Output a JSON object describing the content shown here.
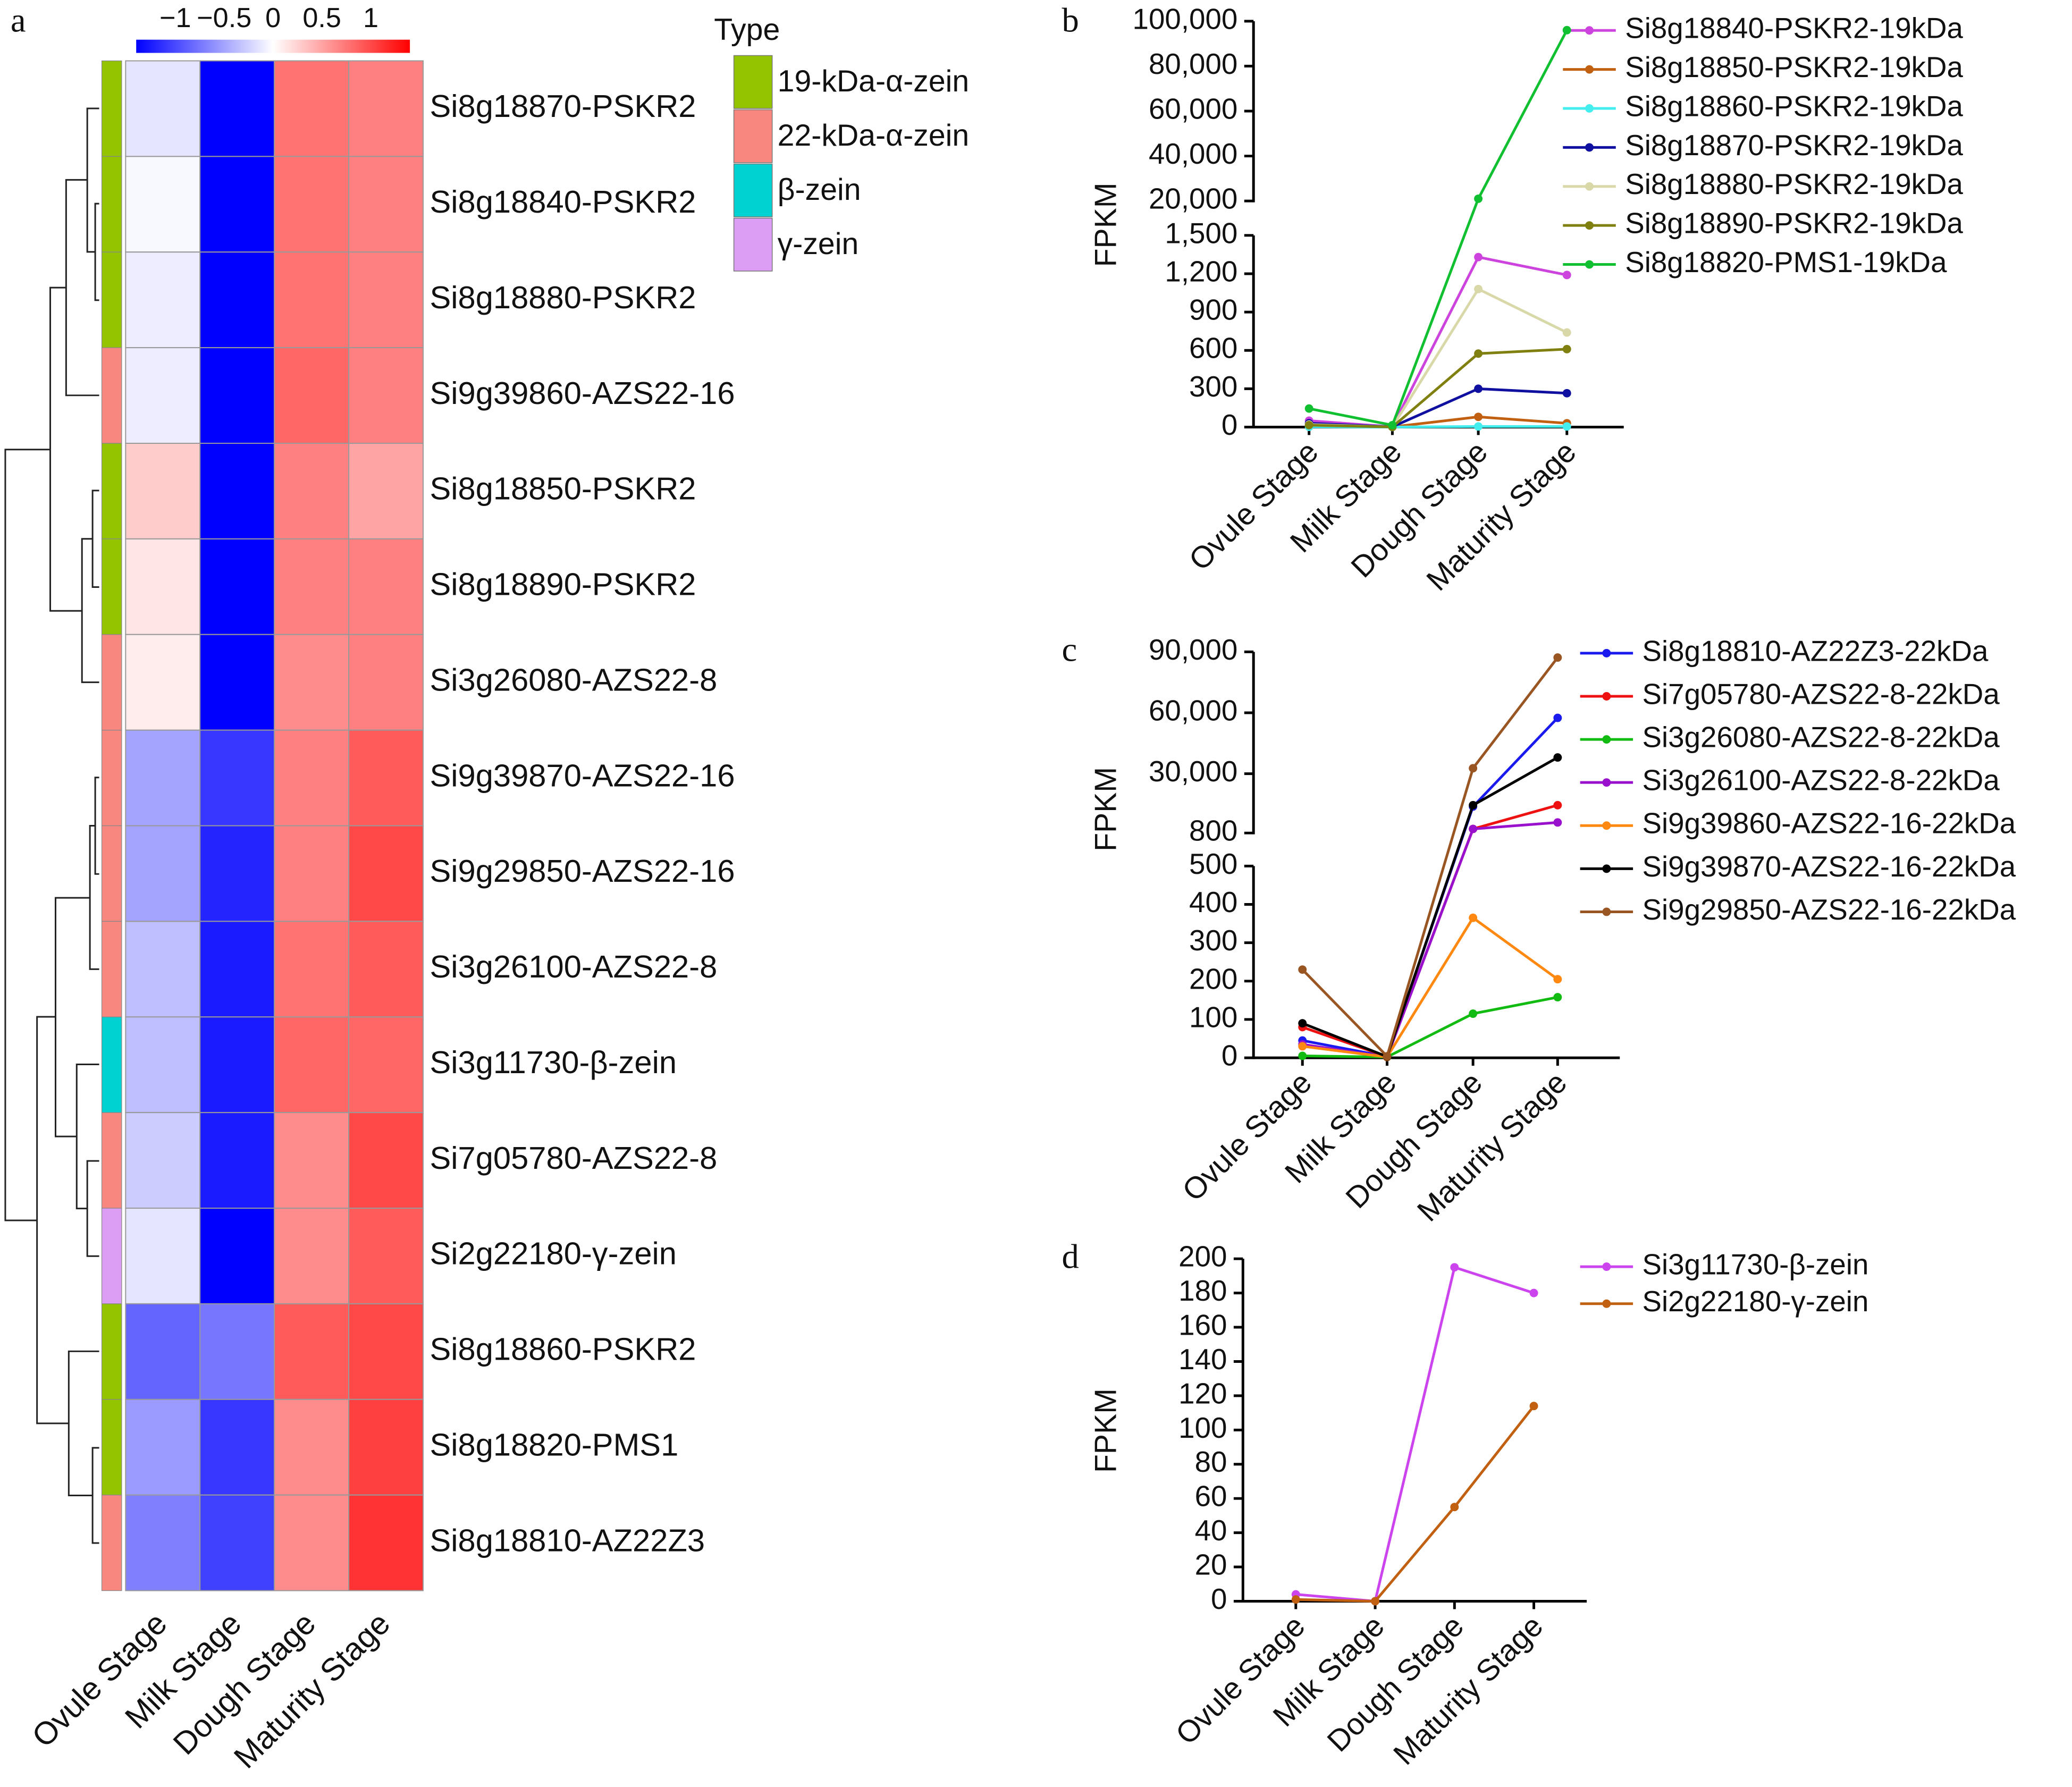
{
  "chart_data": [
    {
      "type": "heatmap",
      "panel": "a",
      "rows": [
        "Si8g18870-PSKR2",
        "Si8g18840-PSKR2",
        "Si8g18880-PSKR2",
        "Si9g39860-AZS22-16",
        "Si8g18850-PSKR2",
        "Si8g18890-PSKR2",
        "Si3g26080-AZS22-8",
        "Si9g39870-AZS22-16",
        "Si9g29850-AZS22-16",
        "Si3g26100-AZS22-8",
        "Si3g11730-β-zein",
        "Si7g05780-AZS22-8",
        "Si2g22180-γ-zein",
        "Si8g18860-PSKR2",
        "Si8g18820-PMS1",
        "Si8g18810-AZ22Z3"
      ],
      "columns": [
        "Ovule Stage",
        "Milk Stage",
        "Dough Stage",
        "Maturity Stage"
      ],
      "values": [
        [
          -0.14,
          -1.4,
          0.77,
          0.7
        ],
        [
          -0.04,
          -1.4,
          0.77,
          0.7
        ],
        [
          -0.1,
          -1.4,
          0.77,
          0.7
        ],
        [
          -0.1,
          -1.4,
          0.84,
          0.7
        ],
        [
          0.28,
          -1.4,
          0.7,
          0.5
        ],
        [
          0.14,
          -1.4,
          0.7,
          0.7
        ],
        [
          0.1,
          -1.4,
          0.63,
          0.7
        ],
        [
          -0.5,
          -1.1,
          0.7,
          0.9
        ],
        [
          -0.5,
          -1.2,
          0.7,
          1.0
        ],
        [
          -0.35,
          -1.25,
          0.77,
          0.9
        ],
        [
          -0.35,
          -1.25,
          0.84,
          0.84
        ],
        [
          -0.28,
          -1.25,
          0.63,
          1.0
        ],
        [
          -0.14,
          -1.4,
          0.63,
          0.9
        ],
        [
          -0.85,
          -0.75,
          0.9,
          1.0
        ],
        [
          -0.55,
          -1.1,
          0.63,
          1.05
        ],
        [
          -0.7,
          -1.05,
          0.63,
          1.12
        ]
      ],
      "zlim": [
        -1.4,
        1.4
      ],
      "colors": [
        "#0000ff",
        "#ffffff",
        "#ff0000"
      ],
      "colorbar_ticks": [
        {
          "value": -1,
          "label": "−1"
        },
        {
          "value": -0.5,
          "label": "−0.5"
        },
        0,
        0.5,
        1
      ],
      "legend_title": "Type",
      "types": [
        {
          "name": "19-kDa-α-zein",
          "color": "#94c400"
        },
        {
          "name": "22-kDa-α-zein",
          "color": "#f8877f"
        },
        {
          "name": "β-zein",
          "color": "#00d2d2"
        },
        {
          "name": "γ-zein",
          "color": "#dc9ef5"
        }
      ],
      "row_types": [
        "19-kDa-α-zein",
        "19-kDa-α-zein",
        "19-kDa-α-zein",
        "22-kDa-α-zein",
        "19-kDa-α-zein",
        "19-kDa-α-zein",
        "22-kDa-α-zein",
        "22-kDa-α-zein",
        "22-kDa-α-zein",
        "22-kDa-α-zein",
        "β-zein",
        "22-kDa-α-zein",
        "γ-zein",
        "19-kDa-α-zein",
        "19-kDa-α-zein",
        "22-kDa-α-zein"
      ]
    },
    {
      "type": "line",
      "panel": "b",
      "ylabel": "FPKM",
      "categories": [
        "Ovule Stage",
        "Milk Stage",
        "Dough Stage",
        "Maturity Stage"
      ],
      "ylim_lower": [
        0,
        1500
      ],
      "yticks_lower": [
        0,
        300,
        600,
        900,
        {
          "value": 1200,
          "label": "1,200"
        },
        {
          "value": 1500,
          "label": "1,500"
        }
      ],
      "ylim_upper": [
        20000,
        100000
      ],
      "yticks_upper": [
        {
          "value": 20000,
          "label": "20,000"
        },
        {
          "value": 40000,
          "label": "40,000"
        },
        {
          "value": 60000,
          "label": "60,000"
        },
        {
          "value": 80000,
          "label": "80,000"
        },
        {
          "value": 100000,
          "label": "100,000"
        }
      ],
      "series": [
        {
          "name": "Si8g18840-PSKR2-19kDa",
          "color": "#cc44dd",
          "values": [
            50,
            2,
            1330,
            1190
          ]
        },
        {
          "name": "Si8g18850-PSKR2-19kDa",
          "color": "#c06010",
          "values": [
            10,
            1,
            80,
            30
          ]
        },
        {
          "name": "Si8g18860-PSKR2-19kDa",
          "color": "#44eeee",
          "values": [
            2,
            0,
            5,
            5
          ]
        },
        {
          "name": "Si8g18870-PSKR2-19kDa",
          "color": "#1010a0",
          "values": [
            30,
            2,
            300,
            265
          ]
        },
        {
          "name": "Si8g18880-PSKR2-19kDa",
          "color": "#d8d8a8",
          "values": [
            20,
            1,
            1080,
            740
          ]
        },
        {
          "name": "Si8g18890-PSKR2-19kDa",
          "color": "#808010",
          "values": [
            15,
            1,
            575,
            610
          ]
        },
        {
          "name": "Si8g18820-PMS1-19kDa",
          "color": "#10c030",
          "values": [
            145,
            15,
            21000,
            96000
          ]
        }
      ]
    },
    {
      "type": "line",
      "panel": "c",
      "ylabel": "FPKM",
      "categories": [
        "Ovule Stage",
        "Milk Stage",
        "Dough Stage",
        "Maturity Stage"
      ],
      "ylim_lower": [
        0,
        500
      ],
      "yticks_lower": [
        0,
        100,
        200,
        300,
        400,
        500
      ],
      "ylim_upper": [
        800,
        90000
      ],
      "yticks_upper": [
        800,
        {
          "value": 30000,
          "label": "30,000"
        },
        {
          "value": 60000,
          "label": "60,000"
        },
        {
          "value": 90000,
          "label": "90,000"
        }
      ],
      "series": [
        {
          "name": "Si8g18810-AZ22Z3-22kDa",
          "color": "#1a1aee",
          "values": [
            45,
            3,
            13800,
            57500
          ]
        },
        {
          "name": "Si7g05780-AZS22-8-22kDa",
          "color": "#ee1111",
          "values": [
            80,
            3,
            2800,
            14500
          ]
        },
        {
          "name": "Si3g26080-AZS22-8-22kDa",
          "color": "#11bb11",
          "values": [
            5,
            2,
            115,
            158
          ]
        },
        {
          "name": "Si3g26100-AZS22-8-22kDa",
          "color": "#9911cc",
          "values": [
            35,
            2,
            2800,
            6000
          ]
        },
        {
          "name": "Si9g39860-AZS22-16-22kDa",
          "color": "#ff8811",
          "values": [
            30,
            2,
            365,
            205
          ]
        },
        {
          "name": "Si9g39870-AZS22-16-22kDa",
          "color": "#000000",
          "values": [
            90,
            3,
            14500,
            38000
          ]
        },
        {
          "name": "Si9g29850-AZS22-16-22kDa",
          "color": "#995522",
          "values": [
            230,
            4,
            32700,
            87200
          ]
        }
      ]
    },
    {
      "type": "line",
      "panel": "d",
      "ylabel": "FPKM",
      "categories": [
        "Ovule Stage",
        "Milk Stage",
        "Dough Stage",
        "Maturity Stage"
      ],
      "ylim": [
        0,
        200
      ],
      "yticks": [
        0,
        20,
        40,
        60,
        80,
        100,
        120,
        140,
        160,
        180,
        200
      ],
      "series": [
        {
          "name": "Si3g11730-β-zein",
          "color": "#cc44ee",
          "values": [
            4,
            0,
            195,
            180
          ]
        },
        {
          "name": "Si2g22180-γ-zein",
          "color": "#c06010",
          "values": [
            1,
            0,
            55,
            114
          ]
        }
      ]
    }
  ]
}
